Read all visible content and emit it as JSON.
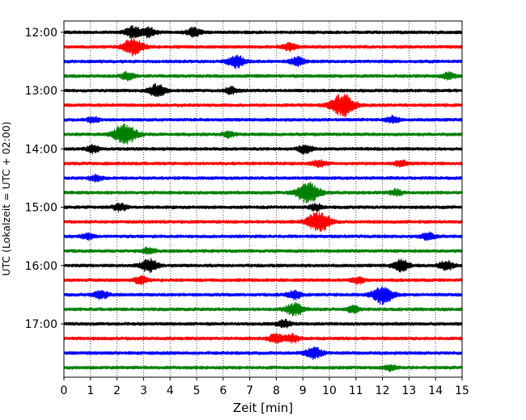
{
  "chart_data": {
    "type": "line",
    "title": "",
    "xlabel": "Zeit  [min]",
    "ylabel": "UTC (Lokalzeit = UTC + 02:00)",
    "xlim": [
      0,
      15
    ],
    "x_ticks": [
      0,
      1,
      2,
      3,
      4,
      5,
      6,
      7,
      8,
      9,
      10,
      11,
      12,
      13,
      14,
      15
    ],
    "x_tick_labels": [
      "0",
      "1",
      "2",
      "3",
      "4",
      "5",
      "6",
      "7",
      "8",
      "9",
      "10",
      "11",
      "12",
      "13",
      "14",
      "15"
    ],
    "y_tick_labels": [
      "12:00",
      "13:00",
      "14:00",
      "15:00",
      "16:00",
      "17:00"
    ],
    "grid": {
      "x": true,
      "style": "dotted"
    },
    "color_cycle": [
      "#000000",
      "#ff0000",
      "#0000ff",
      "#008000"
    ],
    "trace_interval_minutes": 15,
    "start_time": "12:00",
    "series": [
      {
        "start": "12:00",
        "color": "#000000",
        "events": [
          {
            "t": 2.6,
            "amp": 1.2
          },
          {
            "t": 3.2,
            "amp": 1.0
          },
          {
            "t": 4.9,
            "amp": 0.9
          }
        ]
      },
      {
        "start": "12:15",
        "color": "#ff0000",
        "events": [
          {
            "t": 2.6,
            "amp": 1.8
          },
          {
            "t": 8.5,
            "amp": 0.8
          }
        ]
      },
      {
        "start": "12:30",
        "color": "#0000ff",
        "events": [
          {
            "t": 6.5,
            "amp": 1.3
          },
          {
            "t": 8.8,
            "amp": 0.9
          }
        ]
      },
      {
        "start": "12:45",
        "color": "#008000",
        "events": [
          {
            "t": 2.4,
            "amp": 0.8
          },
          {
            "t": 14.5,
            "amp": 0.7
          }
        ]
      },
      {
        "start": "13:00",
        "color": "#000000",
        "events": [
          {
            "t": 3.5,
            "amp": 1.3
          },
          {
            "t": 6.3,
            "amp": 0.7
          }
        ]
      },
      {
        "start": "13:15",
        "color": "#ff0000",
        "events": [
          {
            "t": 10.5,
            "amp": 2.4
          }
        ]
      },
      {
        "start": "13:30",
        "color": "#0000ff",
        "events": [
          {
            "t": 1.1,
            "amp": 0.6
          },
          {
            "t": 12.4,
            "amp": 0.7
          }
        ]
      },
      {
        "start": "13:45",
        "color": "#008000",
        "events": [
          {
            "t": 2.3,
            "amp": 2.2
          },
          {
            "t": 6.2,
            "amp": 0.6
          }
        ]
      },
      {
        "start": "14:00",
        "color": "#000000",
        "events": [
          {
            "t": 1.1,
            "amp": 0.8
          },
          {
            "t": 9.1,
            "amp": 0.9
          }
        ]
      },
      {
        "start": "14:15",
        "color": "#ff0000",
        "events": [
          {
            "t": 9.6,
            "amp": 0.8
          },
          {
            "t": 12.7,
            "amp": 0.7
          }
        ]
      },
      {
        "start": "14:30",
        "color": "#0000ff",
        "events": [
          {
            "t": 1.2,
            "amp": 0.6
          }
        ]
      },
      {
        "start": "14:45",
        "color": "#008000",
        "events": [
          {
            "t": 9.2,
            "amp": 2.2
          },
          {
            "t": 12.5,
            "amp": 0.7
          }
        ]
      },
      {
        "start": "15:00",
        "color": "#000000",
        "events": [
          {
            "t": 2.1,
            "amp": 0.8
          },
          {
            "t": 9.5,
            "amp": 0.7
          }
        ]
      },
      {
        "start": "15:15",
        "color": "#ff0000",
        "events": [
          {
            "t": 9.6,
            "amp": 2.2
          }
        ]
      },
      {
        "start": "15:30",
        "color": "#0000ff",
        "events": [
          {
            "t": 0.9,
            "amp": 0.6
          },
          {
            "t": 13.7,
            "amp": 0.8
          }
        ]
      },
      {
        "start": "15:45",
        "color": "#008000",
        "events": [
          {
            "t": 3.2,
            "amp": 0.7
          }
        ]
      },
      {
        "start": "16:00",
        "color": "#000000",
        "events": [
          {
            "t": 3.2,
            "amp": 1.4
          },
          {
            "t": 12.7,
            "amp": 1.2
          },
          {
            "t": 14.4,
            "amp": 1.0
          }
        ]
      },
      {
        "start": "16:15",
        "color": "#ff0000",
        "events": [
          {
            "t": 2.9,
            "amp": 0.8
          },
          {
            "t": 11.1,
            "amp": 0.7
          }
        ]
      },
      {
        "start": "16:30",
        "color": "#0000ff",
        "events": [
          {
            "t": 1.4,
            "amp": 0.9
          },
          {
            "t": 8.7,
            "amp": 0.9
          },
          {
            "t": 12.0,
            "amp": 1.9
          }
        ]
      },
      {
        "start": "16:45",
        "color": "#008000",
        "events": [
          {
            "t": 8.7,
            "amp": 1.4
          },
          {
            "t": 10.9,
            "amp": 0.7
          }
        ]
      },
      {
        "start": "17:00",
        "color": "#000000",
        "events": [
          {
            "t": 8.3,
            "amp": 0.8
          }
        ]
      },
      {
        "start": "17:15",
        "color": "#ff0000",
        "events": [
          {
            "t": 8.0,
            "amp": 1.0
          },
          {
            "t": 8.6,
            "amp": 0.9
          }
        ]
      },
      {
        "start": "17:30",
        "color": "#0000ff",
        "events": [
          {
            "t": 9.4,
            "amp": 1.3
          }
        ]
      },
      {
        "start": "17:45",
        "color": "#008000",
        "events": [
          {
            "t": 12.3,
            "amp": 0.6
          }
        ]
      }
    ]
  }
}
